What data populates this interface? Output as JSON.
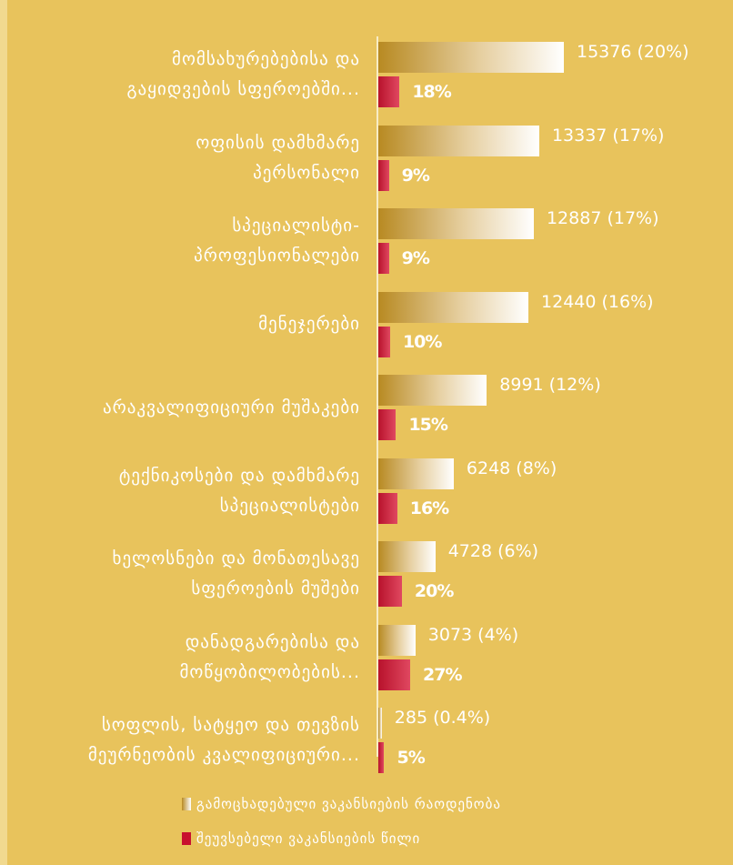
{
  "chart_data": {
    "type": "bar",
    "orientation": "horizontal",
    "categories": [
      "მომსახურებებისა და\nგაყიდვების სფეროებში...",
      "ოფისის დამხმარე\nპერსონალი",
      "სპეციალისტი-\nპროფესიონალები",
      "მენეჯერები",
      "არაკვალიფიციური მუშაკები",
      "ტექნიკოსები და დამხმარე\nსპეციალისტები",
      "ხელოსნები და მონათესავე\nსფეროების მუშები",
      "დანადგარებისა და\nმოწყობილობების...",
      "სოფლის, სატყეო და თევზის\nმეურნეობის კვალიფიციური..."
    ],
    "series": [
      {
        "name": "გამოცხადებული ვაკანსიების რაოდენობა",
        "color": "#b88a22",
        "values": [
          15376,
          13337,
          12887,
          12440,
          8991,
          6248,
          4728,
          3073,
          285
        ],
        "value_labels": [
          "15376 (20%)",
          "13337 (17%)",
          "12887 (17%)",
          "12440 (16%)",
          "8991 (12%)",
          "6248 (8%)",
          "4728 (6%)",
          "3073 (4%)",
          "285 (0.4%)"
        ]
      },
      {
        "name": "შეუვსებელი ვაკანსიების წილი",
        "color": "#c8102e",
        "values": [
          18,
          9,
          9,
          10,
          15,
          16,
          20,
          27,
          5
        ],
        "value_labels": [
          "18%",
          "9%",
          "9%",
          "10%",
          "15%",
          "16%",
          "20%",
          "27%",
          "5%"
        ]
      }
    ]
  }
}
